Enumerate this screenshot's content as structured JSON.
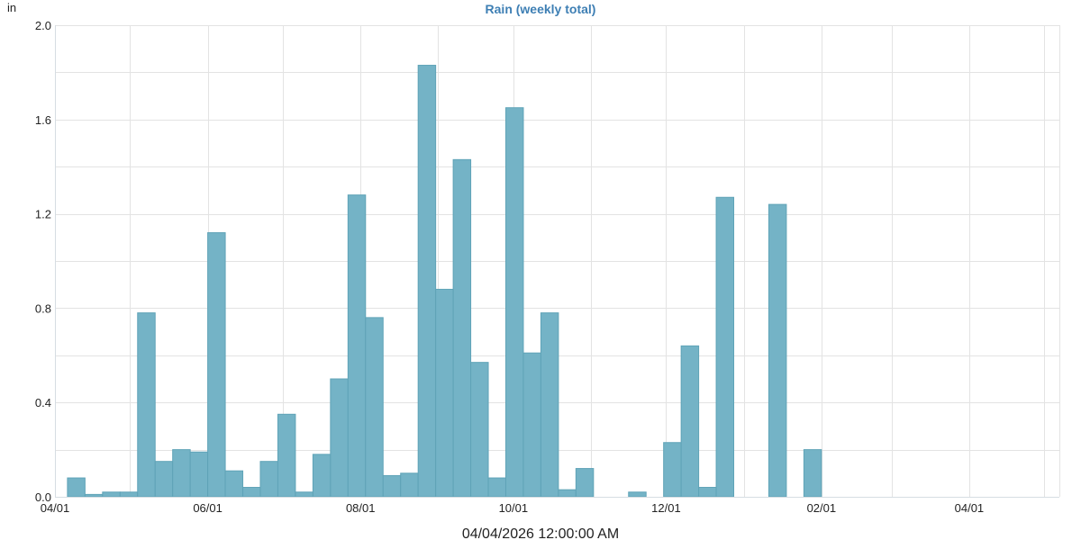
{
  "chart_data": {
    "type": "bar",
    "title": "Rain (weekly total)",
    "ylabel": "in",
    "xlabel": "04/04/2026 12:00:00 AM",
    "ylim": [
      0,
      2.0
    ],
    "yticks": [
      "0.0",
      "0.4",
      "0.8",
      "1.2",
      "1.6",
      "2.0"
    ],
    "ytick_values": [
      0,
      0.4,
      0.8,
      1.2,
      1.6,
      2.0
    ],
    "xticks": [
      "04/01",
      "06/01",
      "08/01",
      "10/01",
      "12/01",
      "02/01",
      "04/01"
    ],
    "xtick_dates": [
      "2025-04-01",
      "2025-06-01",
      "2025-08-01",
      "2025-10-01",
      "2025-12-01",
      "2026-02-01",
      "2026-04-01"
    ],
    "xlim": [
      "2025-04-01",
      "2026-05-07"
    ],
    "grid": true,
    "bar_width_days": 7,
    "week_starts": [
      "2025-04-06",
      "2025-04-13",
      "2025-04-20",
      "2025-04-27",
      "2025-05-04",
      "2025-05-11",
      "2025-05-18",
      "2025-05-25",
      "2025-06-01",
      "2025-06-08",
      "2025-06-15",
      "2025-06-22",
      "2025-06-29",
      "2025-07-06",
      "2025-07-13",
      "2025-07-20",
      "2025-07-27",
      "2025-08-03",
      "2025-08-10",
      "2025-08-17",
      "2025-08-24",
      "2025-08-31",
      "2025-09-07",
      "2025-09-14",
      "2025-09-21",
      "2025-09-28",
      "2025-10-05",
      "2025-10-12",
      "2025-10-19",
      "2025-10-26",
      "2025-11-02",
      "2025-11-09",
      "2025-11-16",
      "2025-11-23",
      "2025-11-30",
      "2025-12-07",
      "2025-12-14",
      "2025-12-21",
      "2025-12-28",
      "2026-01-04",
      "2026-01-11",
      "2026-01-18",
      "2026-01-25",
      "2026-02-01",
      "2026-02-08",
      "2026-02-15",
      "2026-02-22",
      "2026-03-01",
      "2026-03-08",
      "2026-03-15",
      "2026-03-22",
      "2026-03-29",
      "2026-04-05",
      "2026-04-12",
      "2026-04-19",
      "2026-04-26"
    ],
    "values": [
      0.08,
      0.01,
      0.02,
      0.02,
      0.78,
      0.15,
      0.2,
      0.19,
      1.12,
      0.11,
      0.04,
      0.15,
      0.35,
      0.02,
      0.18,
      0.5,
      1.28,
      0.76,
      0.09,
      0.1,
      1.83,
      0.88,
      1.43,
      0.57,
      0.08,
      1.65,
      0.61,
      0.78,
      0.03,
      0.12,
      0,
      0,
      0.02,
      0,
      0.23,
      0.64,
      0.04,
      1.27,
      0,
      0,
      1.24,
      0,
      0.2,
      0,
      0,
      0,
      0,
      0,
      0,
      0,
      0,
      0,
      0,
      0,
      0,
      0
    ],
    "colors": {
      "bar_fill": "#74b3c6",
      "bar_stroke": "#5fa3b7",
      "title": "#3e7fb4"
    }
  }
}
